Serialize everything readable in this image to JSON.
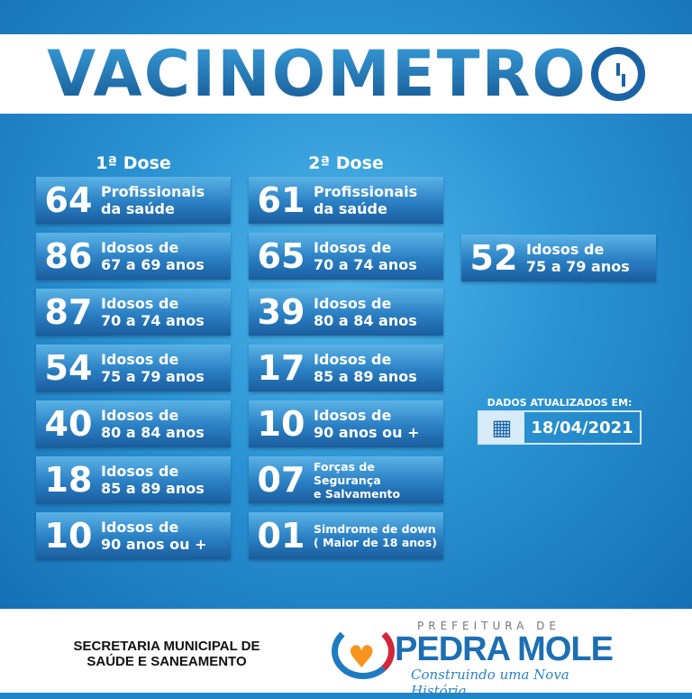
{
  "title": "VACINOMETRO",
  "columns": [
    {
      "header": "1ª Dose",
      "items": [
        {
          "value": "64",
          "line1": "Profissionais",
          "line2": "da saúde"
        },
        {
          "value": "86",
          "line1": "Idosos de",
          "line2": "67 a 69 anos"
        },
        {
          "value": "87",
          "line1": "Idosos de",
          "line2": "70 a 74 anos"
        },
        {
          "value": "54",
          "line1": "Idosos de",
          "line2": "75 a 79 anos"
        },
        {
          "value": "40",
          "line1": "Idosos de",
          "line2": "80 a 84 anos"
        },
        {
          "value": "18",
          "line1": "Idosos de",
          "line2": "85 a 89 anos"
        },
        {
          "value": "10",
          "line1": "Idosos de",
          "line2": "90 anos ou +"
        }
      ]
    },
    {
      "header": "2ª Dose",
      "items": [
        {
          "value": "61",
          "line1": "Profissionais",
          "line2": "da saúde"
        },
        {
          "value": "65",
          "line1": "Idosos de",
          "line2": "70 a 74 anos"
        },
        {
          "value": "39",
          "line1": "Idosos de",
          "line2": "80 a 84 anos"
        },
        {
          "value": "17",
          "line1": "Idosos de",
          "line2": "85 a 89 anos"
        },
        {
          "value": "10",
          "line1": "Idosos de",
          "line2": "90 anos ou +"
        },
        {
          "value": "07",
          "line1": "Forças de Segurança",
          "line2": "e Salvamento"
        },
        {
          "value": "01",
          "line1": "Simdrome de down",
          "line2": "( Maior de 18 anos)"
        }
      ]
    }
  ],
  "extra": {
    "value": "52",
    "line1": "Idosos de",
    "line2": "75 a 79 anos"
  },
  "update": {
    "label": "DADOS ATUALIZADOS EM:",
    "date": "18/04/2021",
    "icon": "calendar-icon"
  },
  "footer": {
    "secretaria_line1": "SECRETARIA MUNICIPAL DE",
    "secretaria_line2": "SAÚDE E SANEAMENTO",
    "logo_prefix": "PREFEITURA DE",
    "logo_name": "PEDRA MOLE",
    "logo_slogan": "Construindo uma Nova História"
  }
}
